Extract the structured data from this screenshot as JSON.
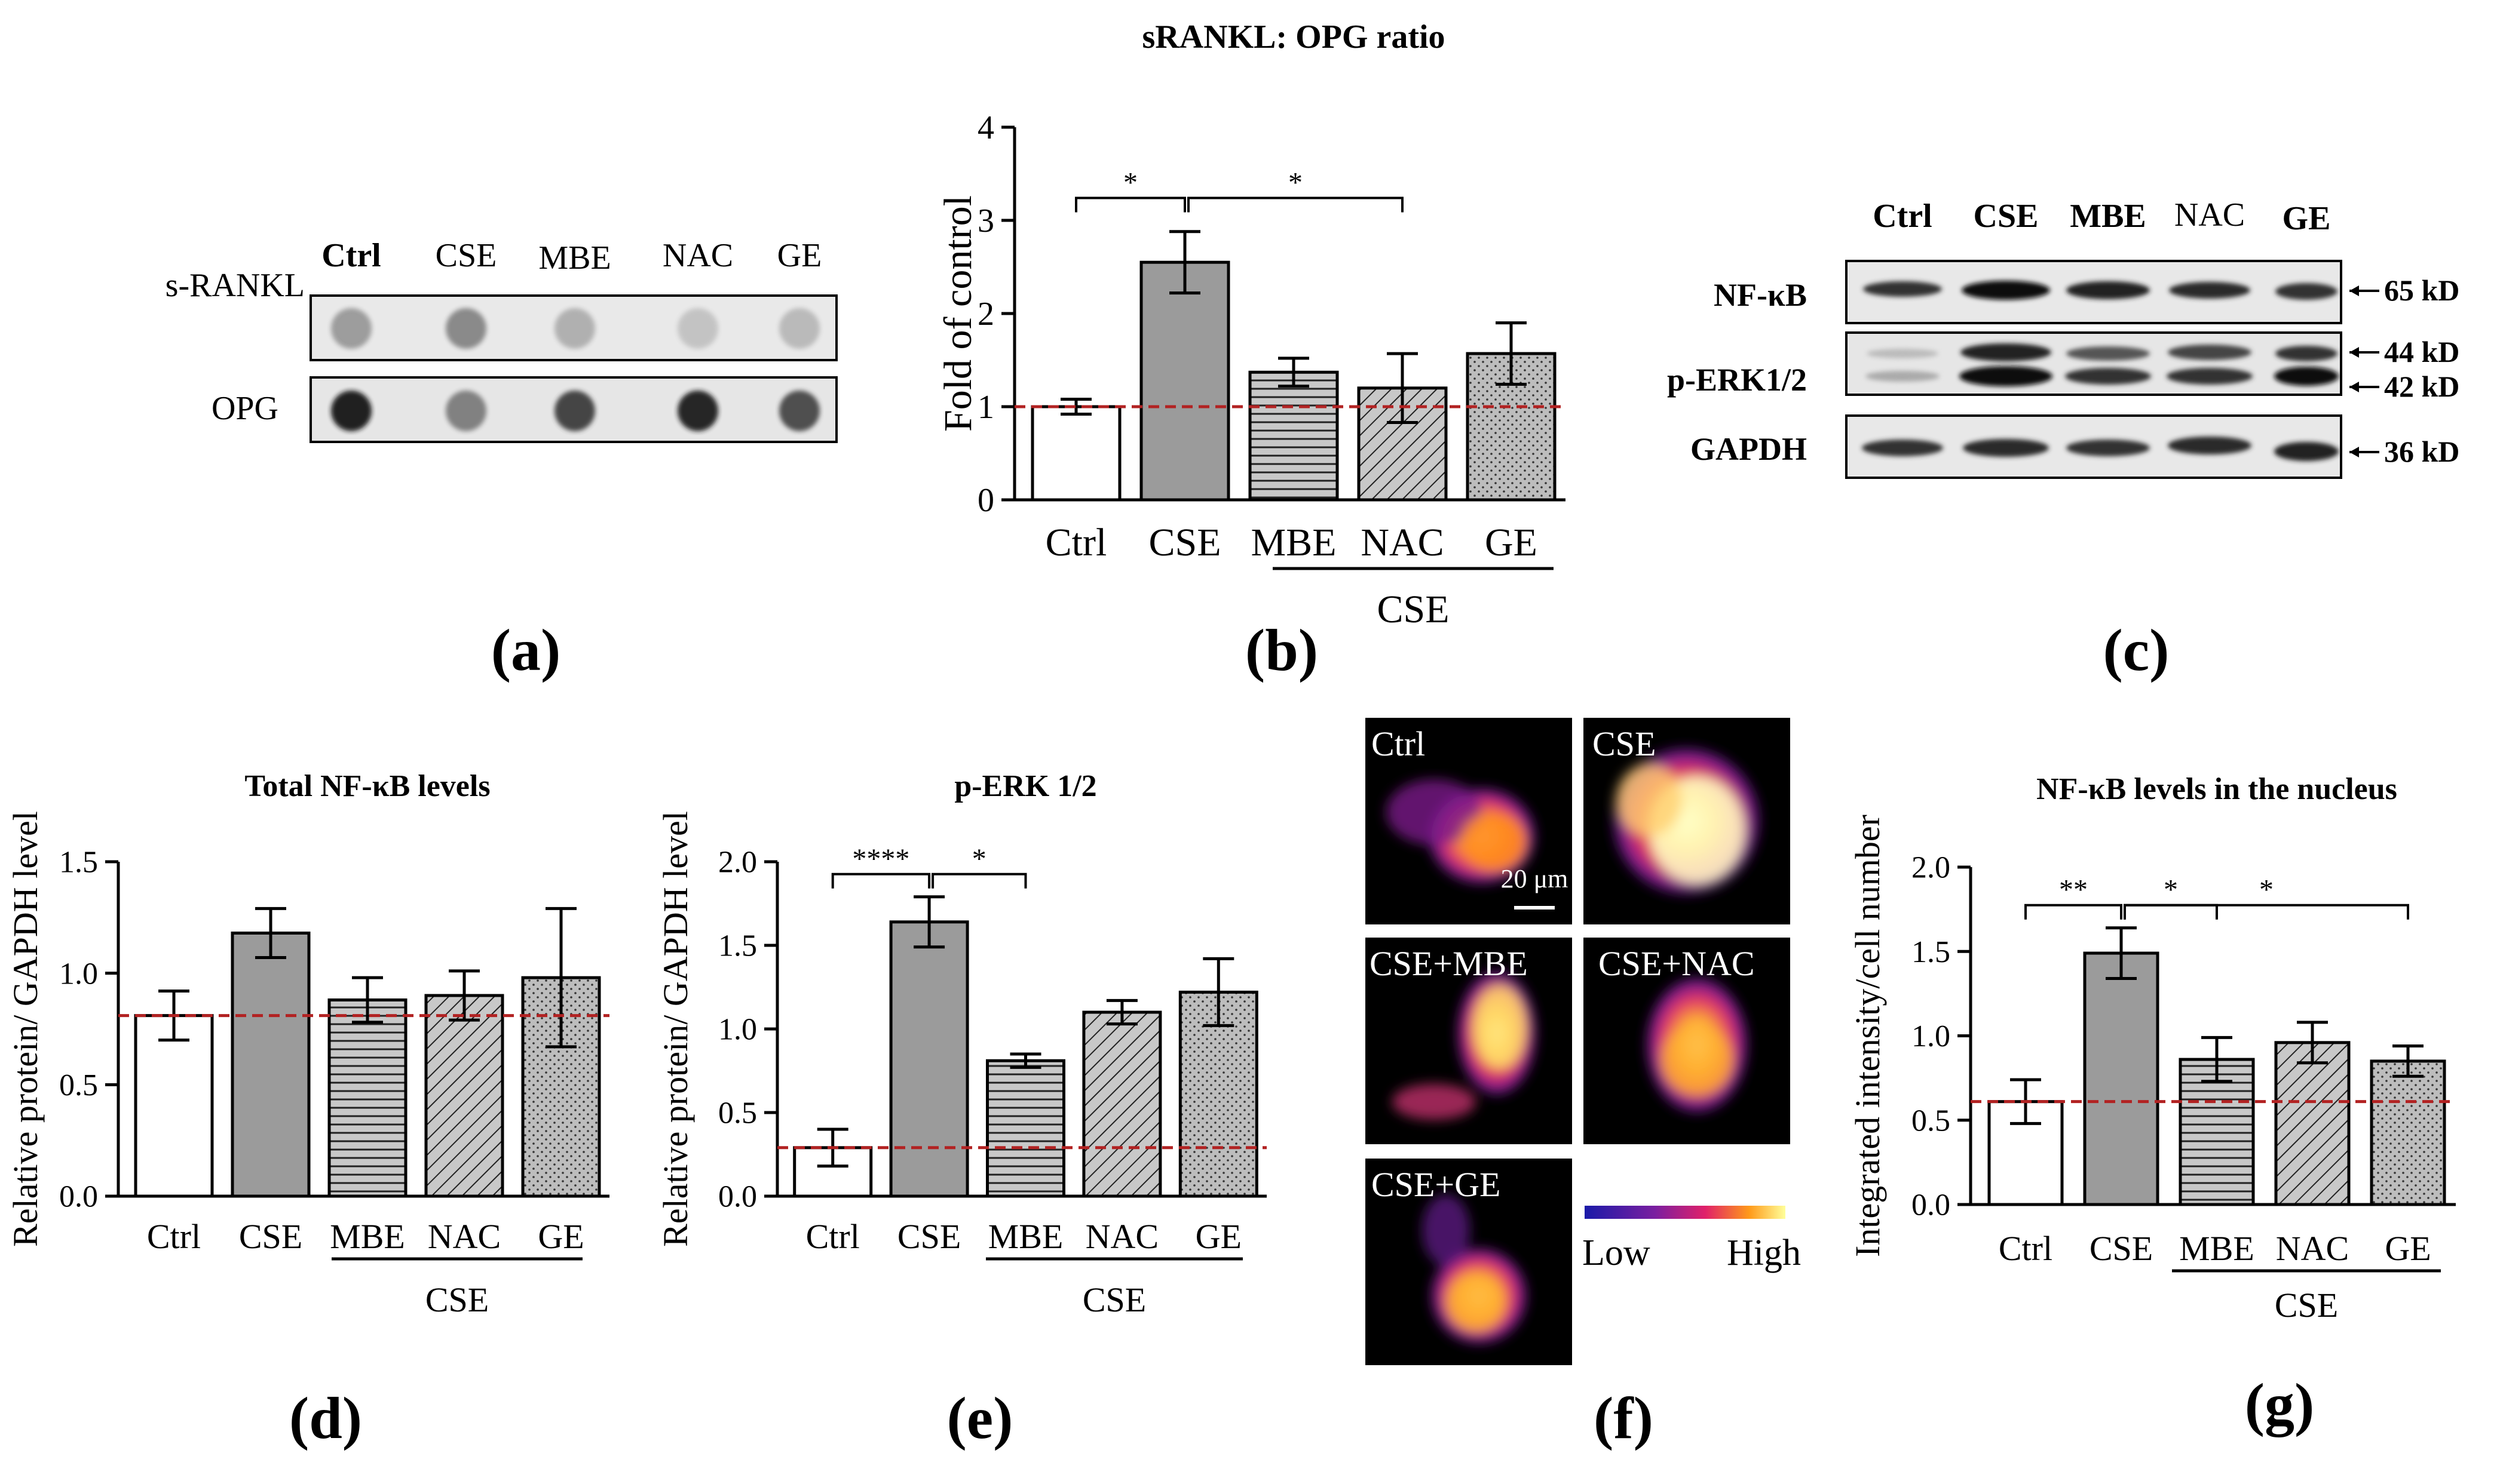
{
  "figure": {
    "panel_letters": [
      "(a)",
      "(b)",
      "(c)",
      "(d)",
      "(e)",
      "(f)",
      "(g)"
    ]
  },
  "groups": [
    "Ctrl",
    "CSE",
    "MBE",
    "NAC",
    "GE"
  ],
  "group_caption": "CSE",
  "ref_line_color": "#b22222",
  "fill": {
    "ctrl": "#ffffff",
    "cse": "#9b9b9b",
    "treat": "#c8c8c8"
  },
  "patterns": [
    "none",
    "solid",
    "horizontal-lines",
    "diagonal-lines",
    "dots"
  ],
  "panel_a": {
    "row_labels": [
      "s-RANKL",
      "OPG"
    ],
    "columns": [
      "Ctrl",
      "CSE",
      "MBE",
      "NAC",
      "GE"
    ],
    "spot_intensity": {
      "s-RANKL": [
        0.35,
        0.45,
        0.25,
        0.15,
        0.2
      ],
      "OPG": [
        1.0,
        0.5,
        0.8,
        0.95,
        0.75
      ]
    }
  },
  "panel_c": {
    "lanes": [
      "Ctrl",
      "CSE",
      "MBE",
      "NAC",
      "GE"
    ],
    "rows": [
      "NF-κB",
      "p-ERK1/2",
      "GAPDH"
    ],
    "markers": [
      "65 kD",
      "44 kD",
      "42 kD",
      "36 kD"
    ]
  },
  "panel_f": {
    "tiles": [
      "Ctrl",
      "CSE",
      "CSE+MBE",
      "CSE+NAC",
      "CSE+GE"
    ],
    "scale_bar": "20 μm",
    "colorbar_low": "Low",
    "colorbar_high": "High"
  },
  "chart_data": [
    {
      "panel": "b",
      "type": "bar",
      "title": "sRANKL: OPG ratio",
      "ylabel": "Fold of control",
      "categories": [
        "Ctrl",
        "CSE",
        "MBE",
        "NAC",
        "GE"
      ],
      "values": [
        1.0,
        2.55,
        1.37,
        1.2,
        1.57
      ],
      "errors": [
        0.08,
        0.33,
        0.15,
        0.37,
        0.33
      ],
      "ylim": [
        0,
        4
      ],
      "yticks": [
        "0",
        "1",
        "2",
        "3",
        "4"
      ],
      "reference_line": 1.0,
      "group_caption": "CSE",
      "significance": [
        {
          "from": 0,
          "to": 1,
          "label": "*"
        },
        {
          "from": 1,
          "to": 3,
          "label": "*"
        }
      ]
    },
    {
      "panel": "d",
      "type": "bar",
      "title": "Total NF-κB levels",
      "ylabel": "Relative protein/ GAPDH level",
      "categories": [
        "Ctrl",
        "CSE",
        "MBE",
        "NAC",
        "GE"
      ],
      "values": [
        0.81,
        1.18,
        0.88,
        0.9,
        0.98
      ],
      "errors": [
        0.11,
        0.11,
        0.1,
        0.11,
        0.31
      ],
      "ylim": [
        0,
        1.5
      ],
      "yticks": [
        "0.0",
        "0.5",
        "1.0",
        "1.5"
      ],
      "reference_line": 0.81,
      "group_caption": "CSE",
      "significance": []
    },
    {
      "panel": "e",
      "type": "bar",
      "title": "p-ERK 1/2",
      "ylabel": "Relative protein/ GAPDH level",
      "categories": [
        "Ctrl",
        "CSE",
        "MBE",
        "NAC",
        "GE"
      ],
      "values": [
        0.29,
        1.64,
        0.81,
        1.1,
        1.22
      ],
      "errors": [
        0.11,
        0.15,
        0.04,
        0.07,
        0.2
      ],
      "ylim": [
        0,
        2.0
      ],
      "yticks": [
        "0.0",
        "0.5",
        "1.0",
        "1.5",
        "2.0"
      ],
      "reference_line": 0.29,
      "group_caption": "CSE",
      "significance": [
        {
          "from": 0,
          "to": 1,
          "label": "****"
        },
        {
          "from": 1,
          "to": 2,
          "label": "*"
        }
      ]
    },
    {
      "panel": "g",
      "type": "bar",
      "title": "NF-κB levels in the nucleus",
      "ylabel": "Integrated intensity/cell number",
      "categories": [
        "Ctrl",
        "CSE",
        "MBE",
        "NAC",
        "GE"
      ],
      "values": [
        0.61,
        1.49,
        0.86,
        0.96,
        0.85
      ],
      "errors": [
        0.13,
        0.15,
        0.13,
        0.12,
        0.09
      ],
      "ylim": [
        0,
        2.0
      ],
      "yticks": [
        "0.0",
        "0.5",
        "1.0",
        "1.5",
        "2.0"
      ],
      "reference_line": 0.61,
      "group_caption": "CSE",
      "significance": [
        {
          "from": 0,
          "to": 1,
          "label": "**"
        },
        {
          "from": 1,
          "to": 2,
          "label": "*"
        },
        {
          "from": 1,
          "to": 4,
          "label": "*"
        }
      ]
    }
  ]
}
